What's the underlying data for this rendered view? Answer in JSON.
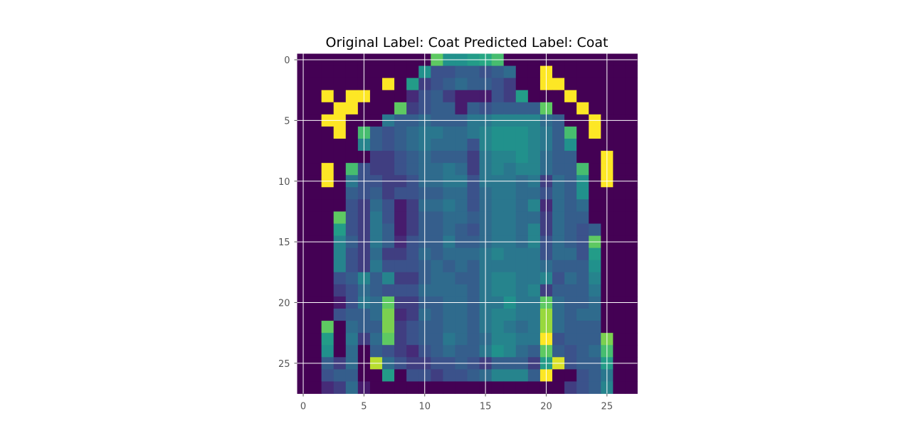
{
  "chart_data": {
    "type": "heatmap",
    "title": "Original Label: Coat  Predicted Label: Coat",
    "xlabel": "",
    "ylabel": "",
    "colormap": "viridis",
    "value_range": [
      0,
      1
    ],
    "grid": true,
    "xlim": [
      -0.5,
      27.5
    ],
    "ylim": [
      27.5,
      -0.5
    ],
    "x_ticks": [
      0,
      5,
      10,
      15,
      20,
      25
    ],
    "y_ticks": [
      0,
      5,
      10,
      15,
      20,
      25
    ],
    "x_tick_labels": [
      "0",
      "5",
      "10",
      "15",
      "20",
      "25"
    ],
    "y_tick_labels": [
      "0",
      "5",
      "10",
      "15",
      "20",
      "25"
    ],
    "colors": {
      "background": "#440154",
      "grid": "#ffffff",
      "tick_text": "#555555",
      "title_text": "#000000"
    },
    "matrix": [
      [
        0,
        0,
        0,
        0,
        0,
        0,
        0,
        0,
        0,
        0,
        0,
        0.75,
        0.5,
        0.5,
        0.55,
        0.6,
        0.7,
        0,
        0,
        0,
        0,
        0,
        0,
        0,
        0,
        0,
        0,
        0
      ],
      [
        0,
        0,
        0,
        0,
        0,
        0,
        0,
        0,
        0,
        0,
        0.5,
        0.25,
        0.25,
        0.3,
        0.3,
        0.25,
        0.3,
        0.35,
        0,
        0,
        1,
        0,
        0,
        0,
        0,
        0,
        0,
        0
      ],
      [
        0,
        0,
        0,
        0,
        0,
        0,
        0,
        1,
        0,
        0.55,
        0.2,
        0.25,
        0.3,
        0.35,
        0.3,
        0.3,
        0.25,
        0.2,
        0,
        0,
        1,
        1,
        0,
        0,
        0,
        0,
        0,
        0
      ],
      [
        0,
        0,
        1,
        0,
        1,
        1,
        0,
        0,
        0,
        0.15,
        0.25,
        0.3,
        0.2,
        0.1,
        0.1,
        0.1,
        0.25,
        0.2,
        0.55,
        0,
        0,
        0,
        1,
        0,
        0,
        0,
        0,
        0
      ],
      [
        0,
        0,
        0,
        1,
        1,
        0,
        0,
        0,
        0.75,
        0.2,
        0.25,
        0.3,
        0.3,
        0.1,
        0.3,
        0.25,
        0.3,
        0.3,
        0.3,
        0.3,
        0.75,
        0,
        0,
        1,
        0,
        0,
        0,
        0
      ],
      [
        0,
        0,
        1,
        1,
        0,
        0,
        0,
        0.4,
        0.3,
        0.3,
        0.35,
        0.3,
        0.3,
        0.3,
        0.4,
        0.4,
        0.45,
        0.45,
        0.45,
        0.45,
        0.35,
        0.3,
        0,
        0,
        1,
        0,
        0,
        0
      ],
      [
        0,
        0,
        0,
        1,
        0,
        0.7,
        0.3,
        0.25,
        0.3,
        0.35,
        0.4,
        0.4,
        0.35,
        0.35,
        0.4,
        0.45,
        0.5,
        0.5,
        0.5,
        0.45,
        0.4,
        0.3,
        0.7,
        0,
        1,
        0,
        0,
        0
      ],
      [
        0,
        0,
        0,
        0,
        0,
        0.45,
        0.3,
        0.25,
        0.3,
        0.35,
        0.4,
        0.35,
        0.35,
        0.35,
        0.25,
        0.45,
        0.5,
        0.5,
        0.5,
        0.45,
        0.4,
        0.3,
        0.5,
        0,
        0,
        0,
        0,
        0
      ],
      [
        0,
        0,
        0,
        0,
        0,
        0,
        0.2,
        0.2,
        0.25,
        0.3,
        0.35,
        0.3,
        0.3,
        0.3,
        0.2,
        0.4,
        0.45,
        0.45,
        0.5,
        0.45,
        0.35,
        0.3,
        0.3,
        0,
        0,
        1,
        0,
        0
      ],
      [
        0,
        0,
        1,
        0,
        0.7,
        0.25,
        0.2,
        0.2,
        0.25,
        0.3,
        0.35,
        0.35,
        0.4,
        0.35,
        0.2,
        0.4,
        0.45,
        0.4,
        0.45,
        0.45,
        0.35,
        0.3,
        0.3,
        0.7,
        0,
        1,
        0,
        0
      ],
      [
        0,
        0,
        1,
        0,
        0.4,
        0.25,
        0.25,
        0.2,
        0.2,
        0.25,
        0.35,
        0.35,
        0.4,
        0.4,
        0.25,
        0.4,
        0.4,
        0.4,
        0.35,
        0.4,
        0.2,
        0.35,
        0.3,
        0.5,
        0,
        1,
        0,
        0
      ],
      [
        0,
        0,
        0,
        0,
        0.3,
        0.25,
        0.3,
        0.2,
        0.25,
        0.25,
        0.3,
        0.3,
        0.35,
        0.35,
        0.25,
        0.35,
        0.4,
        0.4,
        0.35,
        0.35,
        0.25,
        0.35,
        0.3,
        0.5,
        0,
        0,
        0,
        0
      ],
      [
        0,
        0,
        0,
        0,
        0.25,
        0.2,
        0.35,
        0.25,
        0.1,
        0.2,
        0.35,
        0.35,
        0.4,
        0.35,
        0.25,
        0.35,
        0.4,
        0.4,
        0.35,
        0.45,
        0.15,
        0.35,
        0.3,
        0.35,
        0,
        0,
        0,
        0
      ],
      [
        0,
        0,
        0,
        0.75,
        0.25,
        0.2,
        0.4,
        0.25,
        0.1,
        0.2,
        0.3,
        0.3,
        0.35,
        0.35,
        0.3,
        0.35,
        0.4,
        0.4,
        0.35,
        0.35,
        0.2,
        0.35,
        0.3,
        0.3,
        0,
        0,
        0,
        0
      ],
      [
        0,
        0,
        0,
        0.55,
        0.25,
        0.2,
        0.4,
        0.3,
        0.1,
        0.2,
        0.3,
        0.3,
        0.35,
        0.3,
        0.25,
        0.35,
        0.4,
        0.4,
        0.35,
        0.45,
        0.2,
        0.35,
        0.3,
        0.25,
        0.3,
        0,
        0,
        0
      ],
      [
        0,
        0,
        0,
        0.45,
        0.3,
        0.2,
        0.4,
        0.3,
        0.15,
        0.25,
        0.3,
        0.3,
        0.4,
        0.3,
        0.3,
        0.35,
        0.4,
        0.4,
        0.35,
        0.45,
        0.25,
        0.35,
        0.3,
        0.25,
        0.75,
        0,
        0,
        0
      ],
      [
        0,
        0,
        0,
        0.45,
        0.25,
        0.2,
        0.35,
        0.2,
        0.2,
        0.25,
        0.35,
        0.3,
        0.35,
        0.35,
        0.35,
        0.4,
        0.45,
        0.4,
        0.4,
        0.4,
        0.25,
        0.35,
        0.35,
        0.25,
        0.55,
        0,
        0,
        0
      ],
      [
        0,
        0,
        0,
        0.45,
        0.25,
        0.2,
        0.4,
        0.25,
        0.25,
        0.25,
        0.3,
        0.35,
        0.3,
        0.35,
        0.3,
        0.4,
        0.4,
        0.4,
        0.4,
        0.4,
        0.35,
        0.3,
        0.3,
        0.3,
        0.5,
        0,
        0,
        0
      ],
      [
        0,
        0,
        0,
        0.25,
        0.3,
        0.45,
        0.3,
        0.45,
        0.2,
        0.2,
        0.3,
        0.35,
        0.35,
        0.3,
        0.3,
        0.4,
        0.45,
        0.45,
        0.4,
        0.4,
        0.45,
        0.25,
        0.35,
        0.3,
        0.45,
        0,
        0,
        0
      ],
      [
        0,
        0,
        0,
        0.2,
        0.25,
        0.35,
        0.3,
        0.25,
        0.25,
        0.25,
        0.35,
        0.35,
        0.35,
        0.35,
        0.3,
        0.4,
        0.45,
        0.45,
        0.4,
        0.45,
        0.2,
        0.3,
        0.3,
        0.3,
        0.4,
        0,
        0,
        0
      ],
      [
        0,
        0,
        0,
        0.1,
        0.25,
        0.4,
        0.35,
        0.75,
        0.2,
        0.2,
        0.3,
        0.3,
        0.35,
        0.35,
        0.3,
        0.4,
        0.4,
        0.5,
        0.4,
        0.4,
        0.75,
        0.35,
        0.3,
        0.3,
        0.35,
        0,
        0,
        0
      ],
      [
        0,
        0,
        0,
        0.25,
        0.3,
        0.3,
        0.35,
        0.8,
        0.15,
        0.2,
        0.35,
        0.3,
        0.35,
        0.35,
        0.3,
        0.4,
        0.45,
        0.45,
        0.4,
        0.4,
        0.85,
        0.35,
        0.3,
        0.35,
        0.35,
        0,
        0,
        0
      ],
      [
        0,
        0,
        0.75,
        0,
        0.35,
        0.3,
        0.3,
        0.8,
        0.2,
        0.25,
        0.3,
        0.3,
        0.35,
        0.35,
        0.3,
        0.4,
        0.45,
        0.4,
        0.35,
        0.4,
        0.85,
        0.35,
        0.3,
        0.3,
        0.3,
        0,
        0,
        0
      ],
      [
        0,
        0,
        0.55,
        0,
        0.4,
        0.2,
        0.35,
        0.75,
        0.2,
        0.25,
        0.3,
        0.3,
        0.4,
        0.35,
        0.3,
        0.35,
        0.45,
        0.45,
        0.4,
        0.4,
        1,
        0.25,
        0.3,
        0.3,
        0.3,
        0.8,
        0,
        0
      ],
      [
        0,
        0,
        0.5,
        0,
        0.35,
        0,
        0.3,
        0.25,
        0.2,
        0.15,
        0.25,
        0.3,
        0.35,
        0.3,
        0.3,
        0.4,
        0.5,
        0.45,
        0.35,
        0.3,
        0.75,
        0.3,
        0.25,
        0.3,
        0.35,
        0.7,
        0,
        0
      ],
      [
        0,
        0,
        0.3,
        0.2,
        0.35,
        0,
        0.9,
        0.35,
        0.25,
        0.2,
        0.2,
        0.25,
        0.25,
        0.3,
        0.25,
        0.2,
        0.3,
        0.3,
        0.3,
        0.2,
        0.55,
        0.95,
        0.25,
        0.3,
        0.3,
        0.55,
        0,
        0
      ],
      [
        0,
        0,
        0.25,
        0.3,
        0.3,
        0,
        0,
        0.55,
        0,
        0.25,
        0.25,
        0.2,
        0.25,
        0.25,
        0.3,
        0.35,
        0.45,
        0.45,
        0.45,
        0.3,
        1,
        0,
        0,
        0.25,
        0.3,
        0.4,
        0,
        0
      ],
      [
        0,
        0,
        0.15,
        0.2,
        0.35,
        0.1,
        0,
        0,
        0,
        0,
        0,
        0,
        0,
        0,
        0,
        0,
        0,
        0,
        0,
        0,
        0,
        0,
        0.2,
        0.25,
        0.3,
        0.45,
        0,
        0
      ]
    ]
  }
}
